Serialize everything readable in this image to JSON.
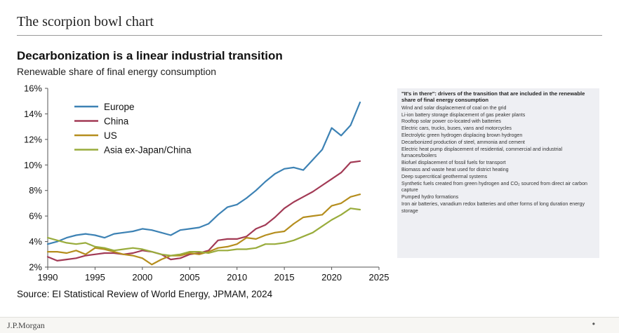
{
  "page": {
    "header": "The scorpion bowl chart",
    "footer_brand": "J.P.Morgan",
    "footer_dot": "•"
  },
  "chart_data": {
    "type": "line",
    "title": "Decarbonization is a linear industrial transition",
    "subtitle": "Renewable share of final energy consumption",
    "source": "Source: EI Statistical Review of World Energy, JPMAM, 2024",
    "xlim": [
      1990,
      2025
    ],
    "ylim": [
      2,
      16
    ],
    "x_ticks": [
      1990,
      1995,
      2000,
      2005,
      2010,
      2015,
      2020,
      2025
    ],
    "x_tick_labels": [
      "1990",
      "1995",
      "2000",
      "2005",
      "2010",
      "2015",
      "2020",
      "2025"
    ],
    "y_ticks": [
      2,
      4,
      6,
      8,
      10,
      12,
      14,
      16
    ],
    "y_tick_labels": [
      "2%",
      "4%",
      "6%",
      "8%",
      "10%",
      "12%",
      "14%",
      "16%"
    ],
    "grid": false,
    "legend_position": "top-left",
    "series": [
      {
        "name": "Europe",
        "color": "#3d82b4",
        "x": [
          1990,
          1991,
          1992,
          1993,
          1994,
          1995,
          1996,
          1997,
          1998,
          1999,
          2000,
          2001,
          2002,
          2003,
          2004,
          2005,
          2006,
          2007,
          2008,
          2009,
          2010,
          2011,
          2012,
          2013,
          2014,
          2015,
          2016,
          2017,
          2018,
          2019,
          2020,
          2021,
          2022,
          2023
        ],
        "y": [
          3.8,
          4.0,
          4.3,
          4.5,
          4.6,
          4.5,
          4.3,
          4.6,
          4.7,
          4.8,
          5.0,
          4.9,
          4.7,
          4.5,
          4.9,
          5.0,
          5.1,
          5.4,
          6.1,
          6.7,
          6.9,
          7.4,
          8.0,
          8.7,
          9.3,
          9.7,
          9.8,
          9.6,
          10.4,
          11.2,
          12.9,
          12.3,
          13.1,
          14.9
        ]
      },
      {
        "name": "China",
        "color": "#a23a55",
        "x": [
          1990,
          1991,
          1992,
          1993,
          1994,
          1995,
          1996,
          1997,
          1998,
          1999,
          2000,
          2001,
          2002,
          2003,
          2004,
          2005,
          2006,
          2007,
          2008,
          2009,
          2010,
          2011,
          2012,
          2013,
          2014,
          2015,
          2016,
          2017,
          2018,
          2019,
          2020,
          2021,
          2022,
          2023
        ],
        "y": [
          2.8,
          2.5,
          2.6,
          2.7,
          2.9,
          3.0,
          3.1,
          3.1,
          3.0,
          3.1,
          3.3,
          3.2,
          3.0,
          2.6,
          2.7,
          3.0,
          3.1,
          3.3,
          4.1,
          4.2,
          4.2,
          4.4,
          5.0,
          5.3,
          5.9,
          6.6,
          7.1,
          7.5,
          7.9,
          8.4,
          8.9,
          9.4,
          10.2,
          10.3
        ]
      },
      {
        "name": "US",
        "color": "#b58e1e",
        "x": [
          1990,
          1991,
          1992,
          1993,
          1994,
          1995,
          1996,
          1997,
          1998,
          1999,
          2000,
          2001,
          2002,
          2003,
          2004,
          2005,
          2006,
          2007,
          2008,
          2009,
          2010,
          2011,
          2012,
          2013,
          2014,
          2015,
          2016,
          2017,
          2018,
          2019,
          2020,
          2021,
          2022,
          2023
        ],
        "y": [
          3.2,
          3.2,
          3.1,
          3.3,
          3.0,
          3.5,
          3.4,
          3.2,
          3.0,
          2.9,
          2.7,
          2.2,
          2.6,
          2.9,
          2.9,
          3.1,
          3.0,
          3.2,
          3.5,
          3.6,
          3.8,
          4.3,
          4.2,
          4.5,
          4.7,
          4.8,
          5.4,
          5.9,
          6.0,
          6.1,
          6.8,
          7.0,
          7.5,
          7.7
        ]
      },
      {
        "name": "Asia  ex-Japan/China",
        "color": "#99ac3c",
        "x": [
          1990,
          1991,
          1992,
          1993,
          1994,
          1995,
          1996,
          1997,
          1998,
          1999,
          2000,
          2001,
          2002,
          2003,
          2004,
          2005,
          2006,
          2007,
          2008,
          2009,
          2010,
          2011,
          2012,
          2013,
          2014,
          2015,
          2016,
          2017,
          2018,
          2019,
          2020,
          2021,
          2022,
          2023
        ],
        "y": [
          4.3,
          4.1,
          3.9,
          3.8,
          3.9,
          3.6,
          3.5,
          3.3,
          3.4,
          3.5,
          3.4,
          3.2,
          3.0,
          2.9,
          3.0,
          3.2,
          3.2,
          3.1,
          3.3,
          3.3,
          3.4,
          3.4,
          3.5,
          3.8,
          3.8,
          3.9,
          4.1,
          4.4,
          4.7,
          5.2,
          5.7,
          6.1,
          6.6,
          6.5
        ]
      }
    ]
  },
  "panel": {
    "heading": "\"It's in there\": drivers of the transition that are included in the renewable share of final energy consumption",
    "items": [
      "Wind and solar displacement of coal on the grid",
      "Li-ion battery storage displacement of gas peaker plants",
      "Rooftop solar power co-located with batteries",
      "Electric cars, trucks, buses, vans and motorcycles",
      "Electrolytic green hydrogen displacing brown hydrogen",
      "Decarbonized production of steel, ammonia and cement",
      "Electric heat pump displacement of residential, commercial and industrial furnaces/boilers",
      "Biofuel displacement of fossil fuels for transport",
      "Biomass and waste heat used for district heating",
      "Deep supercritical geothermal systems",
      "Synthetic fuels created from green hydrogen and CO₂ sourced from direct air carbon capture",
      "Pumped hydro formations",
      "Iron air batteries, vanadium redox batteries and other forms of long duration energy storage"
    ]
  }
}
